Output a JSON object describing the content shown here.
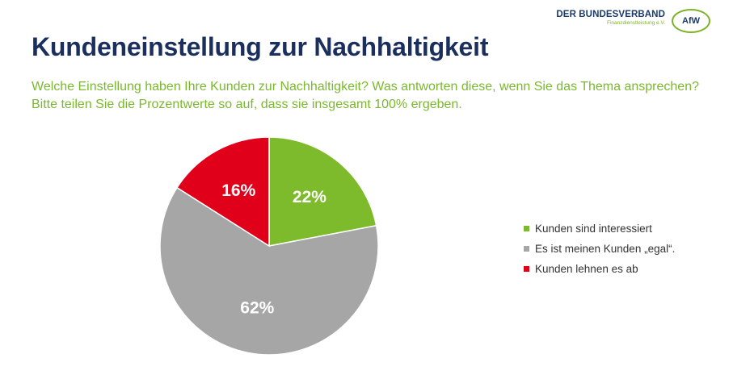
{
  "header": {
    "logo_main": "DER BUNDESVERBAND",
    "logo_sub": "Finanzdienstleistung e.V.",
    "logo_badge": "AfW"
  },
  "title": "Kundeneinstellung zur Nachhaltigkeit",
  "subtitle": "Welche Einstellung haben Ihre Kunden zur Nachhaltigkeit? Was antworten diese, wenn Sie das Thema ansprechen? Bitte teilen Sie die Prozentwerte so auf, dass sie insgesamt 100% ergeben.",
  "chart_data": {
    "type": "pie",
    "title": "",
    "unit": "%",
    "slices": [
      {
        "label": "Kunden sind interessiert",
        "value": 22,
        "display": "22%",
        "color": "#7dbb2c"
      },
      {
        "label": "Es ist meinen Kunden „egal“.",
        "value": 62,
        "display": "62%",
        "color": "#a6a6a6"
      },
      {
        "label": "Kunden lehnen es ab",
        "value": 16,
        "display": "16%",
        "color": "#e1001a"
      }
    ],
    "legend_position": "right",
    "label_color": "#ffffff"
  },
  "colors": {
    "title": "#1b2f5e",
    "subtitle": "#7ab82e",
    "brand_navy": "#1b3a6b",
    "brand_green": "#7db32b"
  }
}
